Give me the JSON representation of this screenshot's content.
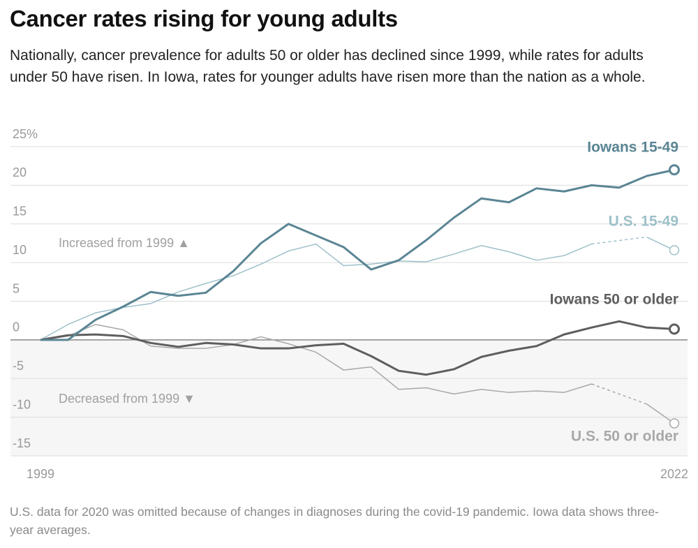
{
  "chart_data": {
    "type": "line",
    "title": "Cancer rates rising for young adults",
    "subtitle": "Nationally, cancer prevalence for adults 50 or older has declined since 1999, while rates for adults under 50 have risen. In Iowa, rates for younger adults have risen more than the nation as a whole.",
    "note": "U.S. data for 2020 was omitted because of changes in diagnoses during the covid-19 pandemic. Iowa data shows three-year averages.",
    "annotations": [
      "Increased from 1999 ▲",
      "Decreased from 1999 ▼"
    ],
    "x": [
      1999,
      2000,
      2001,
      2002,
      2003,
      2004,
      2005,
      2006,
      2007,
      2008,
      2009,
      2010,
      2011,
      2012,
      2013,
      2014,
      2015,
      2016,
      2017,
      2018,
      2019,
      2020,
      2021,
      2022
    ],
    "xlim": [
      1999,
      2022
    ],
    "xticks": [
      1999,
      2022
    ],
    "ylim": [
      -15,
      25
    ],
    "yticks": [
      -15,
      -10,
      -5,
      0,
      5,
      10,
      15,
      20,
      {
        "value": 25,
        "label": "25%"
      }
    ],
    "grid": true,
    "series": [
      {
        "name": "U.S. 50 or older",
        "color": "#a8a8a8",
        "values": [
          0,
          0.5,
          2,
          1.3,
          -0.8,
          -1.1,
          -1.1,
          -0.6,
          0.4,
          -0.5,
          -1.6,
          -3.9,
          -3.5,
          -6.4,
          -6.2,
          -7,
          -6.4,
          -6.8,
          -6.6,
          -6.8,
          -5.7,
          null,
          -8.3,
          -10.8
        ]
      },
      {
        "name": "U.S. 15-49",
        "color": "#9ec0c9",
        "values": [
          0,
          2,
          3.5,
          4.2,
          4.7,
          6.2,
          7.3,
          8.3,
          9.8,
          11.5,
          12.4,
          9.6,
          9.8,
          10.2,
          10.1,
          11.1,
          12.2,
          11.4,
          10.3,
          10.9,
          12.4,
          null,
          13.3,
          11.6
        ]
      },
      {
        "name": "Iowans 50 or older",
        "color": "#5e5e5e",
        "values": [
          0,
          0.6,
          0.7,
          0.5,
          -0.4,
          -0.9,
          -0.4,
          -0.6,
          -1.1,
          -1.1,
          -0.7,
          -0.5,
          -2.1,
          -4,
          -4.5,
          -3.8,
          -2.2,
          -1.4,
          -0.8,
          0.7,
          1.6,
          2.4,
          1.6,
          1.4
        ]
      },
      {
        "name": "Iowans 15-49",
        "color": "#5a8594",
        "values": [
          0,
          0,
          2.6,
          4.3,
          6.2,
          5.7,
          6.1,
          8.9,
          12.5,
          15,
          13.5,
          12,
          9.1,
          10.3,
          12.9,
          15.8,
          18.3,
          17.8,
          19.6,
          19.2,
          20,
          19.7,
          21.2,
          22
        ]
      }
    ]
  }
}
